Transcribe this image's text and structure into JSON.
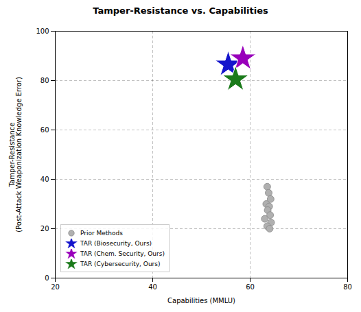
{
  "chart_data": {
    "type": "scatter",
    "title": "Tamper-Resistance vs. Capabilities",
    "xlabel": "Capabilities (MMLU)",
    "ylabel": "Tamper-Resistance\n(Post-Attack Weaponization Knowledge Error)",
    "xlim": [
      20,
      80
    ],
    "ylim": [
      0,
      100
    ],
    "xticks": [
      20,
      40,
      60,
      80
    ],
    "yticks": [
      0,
      20,
      40,
      60,
      80,
      100
    ],
    "grid": true,
    "legend": "lower left",
    "series": [
      {
        "name": "Prior Methods",
        "color": "#b0b0b0",
        "marker": "circle",
        "x": [
          63.5,
          63.8,
          64.2,
          63.3,
          63.9,
          63.6,
          64.1,
          63.0,
          64.3,
          63.5,
          64.0
        ],
        "values": [
          37.0,
          34.5,
          32.0,
          30.0,
          29.0,
          27.5,
          25.5,
          24.0,
          22.5,
          21.0,
          20.0
        ]
      },
      {
        "name": "TAR (Biosecurity, Ours)",
        "color": "#1414cc",
        "marker": "star",
        "x": [
          55.5
        ],
        "values": [
          86.5
        ]
      },
      {
        "name": "TAR (Chem. Security, Ours)",
        "color": "#9900bb",
        "marker": "star",
        "x": [
          58.5
        ],
        "values": [
          89.0
        ]
      },
      {
        "name": "TAR (Cybersecurity, Ours)",
        "color": "#1a7a1a",
        "marker": "star",
        "x": [
          57.0
        ],
        "values": [
          80.5
        ]
      }
    ]
  }
}
